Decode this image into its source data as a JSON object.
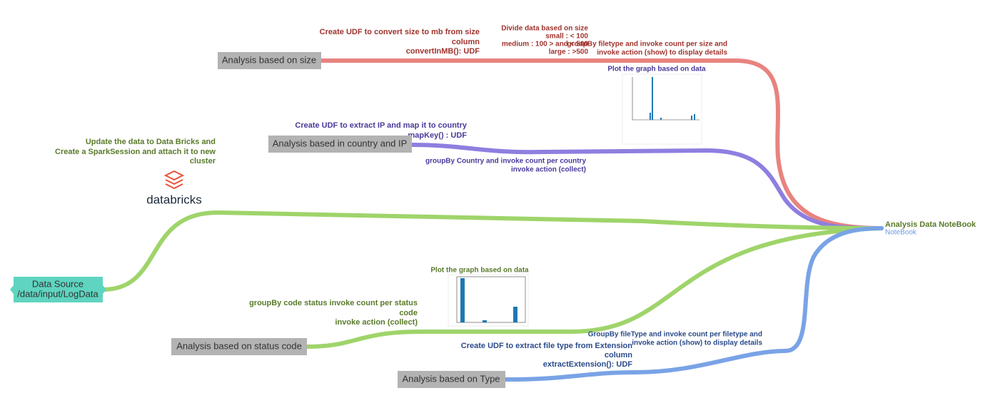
{
  "source": {
    "lines": [
      "Data Source",
      "/data/input/LogData"
    ]
  },
  "databricks": {
    "caption": [
      "Update the data to Data Bricks and",
      "Create a SparkSession and attach it to new",
      "cluster"
    ],
    "logo": "databricks"
  },
  "target": {
    "title": "Analysis Data NoteBook",
    "subtitle": "NoteBook"
  },
  "branches": [
    {
      "node": "Analysis based on size",
      "udf": [
        "Create UDF to convert size to mb from size",
        "column",
        "convertInMB(): UDF"
      ],
      "divide": [
        "Divide data based on size",
        "small : < 100",
        "medium : 100 > and < 500",
        "large : >500"
      ],
      "group": [
        "groupBy filetype and invoke count per size and",
        "invoke action (show) to display details"
      ],
      "plot": "Plot the graph based on data"
    },
    {
      "node": "Analysis based in country and IP",
      "udf": [
        "Create UDF to extract IP and map it to country",
        "mapKey() : UDF"
      ],
      "group": [
        "groupBy Country and invoke count per country",
        "invoke action (collect)"
      ]
    },
    {
      "node": "Analysis based on status code",
      "group": [
        "groupBy code status invoke count per status",
        "code",
        "invoke action (collect)"
      ],
      "plot": "Plot the graph based on data"
    },
    {
      "node": "Analysis based on Type",
      "udf": [
        "Create UDF to extract file type from Extension",
        "column",
        "extractExtension(): UDF"
      ],
      "group": [
        "GroupBy fileType and invoke count per filetype and",
        "invoke action (show) to display details"
      ]
    }
  ]
}
